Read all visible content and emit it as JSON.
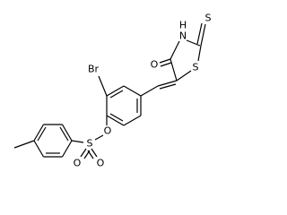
{
  "atoms": [
    {
      "label": "S"
    },
    {
      "label": "H"
    },
    {
      "label": "N"
    },
    {
      "label": "O"
    },
    {
      "label": "S"
    },
    {
      "label": "Br"
    },
    {
      "label": "O"
    },
    {
      "label": "S"
    },
    {
      "label": "O"
    },
    {
      "label": "O"
    }
  ]
}
